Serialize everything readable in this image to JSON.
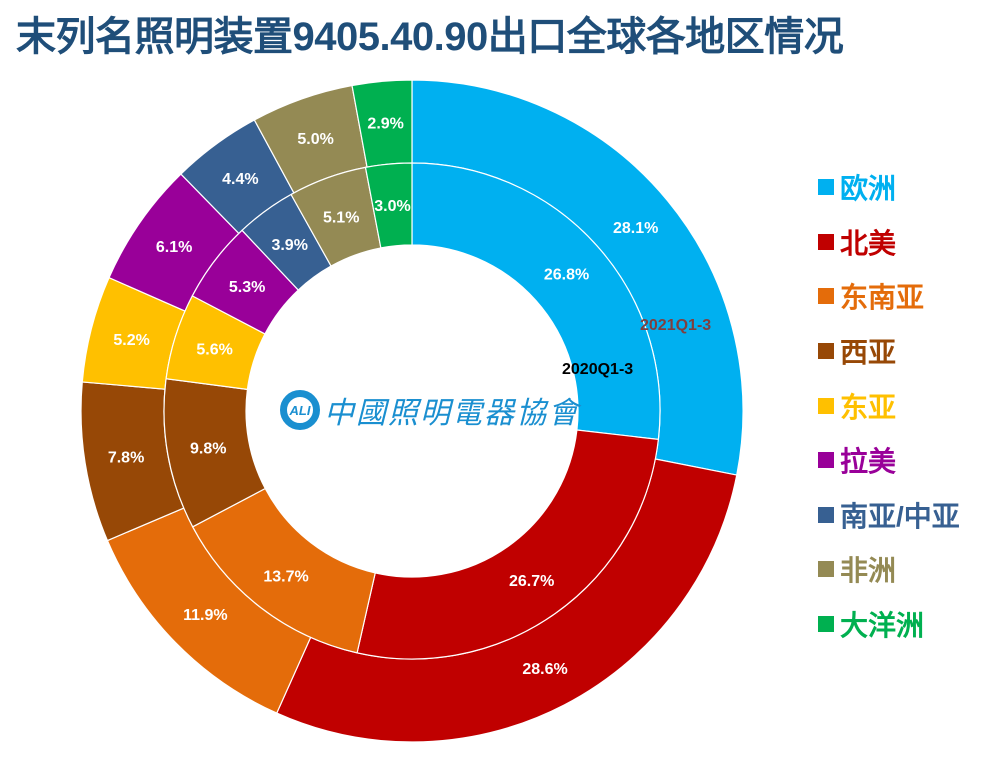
{
  "chart_data": {
    "type": "pie",
    "subtype": "double-donut",
    "title": "末列名照明装置9405.40.90出口全球各地区情况",
    "categories": [
      "欧洲",
      "北美",
      "东南亚",
      "西亚",
      "东亚",
      "拉美",
      "南亚/中亚",
      "非洲",
      "大洋洲"
    ],
    "colors": [
      "#00B0F0",
      "#C00000",
      "#E46C0A",
      "#974806",
      "#FFC000",
      "#990099",
      "#376092",
      "#948A54",
      "#00B050"
    ],
    "series": [
      {
        "name": "2021Q1-3",
        "ring": "outer",
        "label_color": "#7F3F3F",
        "values": [
          28.1,
          28.6,
          11.9,
          7.8,
          5.2,
          6.1,
          4.4,
          5.0,
          2.9
        ],
        "labels": [
          "28.1%",
          "28.6%",
          "11.9%",
          "7.8%",
          "5.2%",
          "6.1%",
          "4.4%",
          "5.0%",
          "2.9%"
        ]
      },
      {
        "name": "2020Q1-3",
        "ring": "inner",
        "label_color": "#000000",
        "values": [
          26.8,
          26.7,
          13.7,
          9.8,
          5.6,
          5.3,
          3.9,
          5.1,
          3.0
        ],
        "labels": [
          "26.8%",
          "26.7%",
          "13.7%",
          "9.8%",
          "5.6%",
          "5.3%",
          "3.9%",
          "5.1%",
          "3.0%"
        ]
      }
    ],
    "legend_position": "right",
    "start_angle": "12 o'clock, clockwise"
  },
  "logo": {
    "mark": "ALI",
    "text": "中國照明電器協會"
  }
}
